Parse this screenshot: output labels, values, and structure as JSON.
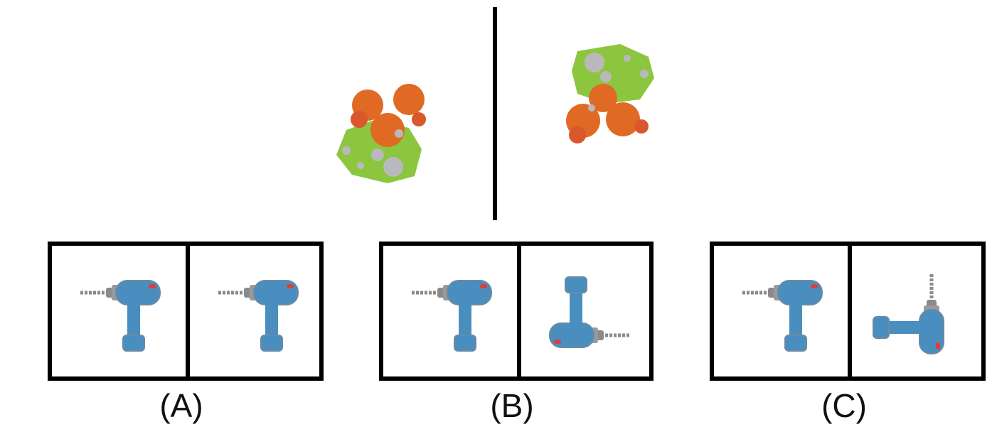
{
  "top": {
    "left_image": "autumn-tree-island-icon",
    "right_image": "autumn-tree-island-rotated-icon"
  },
  "options": [
    {
      "label": "(A)",
      "left": "drill-icon",
      "right": "drill-icon"
    },
    {
      "label": "(B)",
      "left": "drill-icon",
      "right": "drill-rotated-icon"
    },
    {
      "label": "(C)",
      "left": "drill-icon",
      "right": "drill-rotated-icon"
    }
  ],
  "colors": {
    "grass": "#8cc63f",
    "leaves": "#e06a24",
    "rock": "#b9b9bd",
    "drill_body": "#4a8ec0",
    "drill_metal": "#8a8a8a",
    "accent_red": "#d9403a",
    "border": "#000000"
  }
}
